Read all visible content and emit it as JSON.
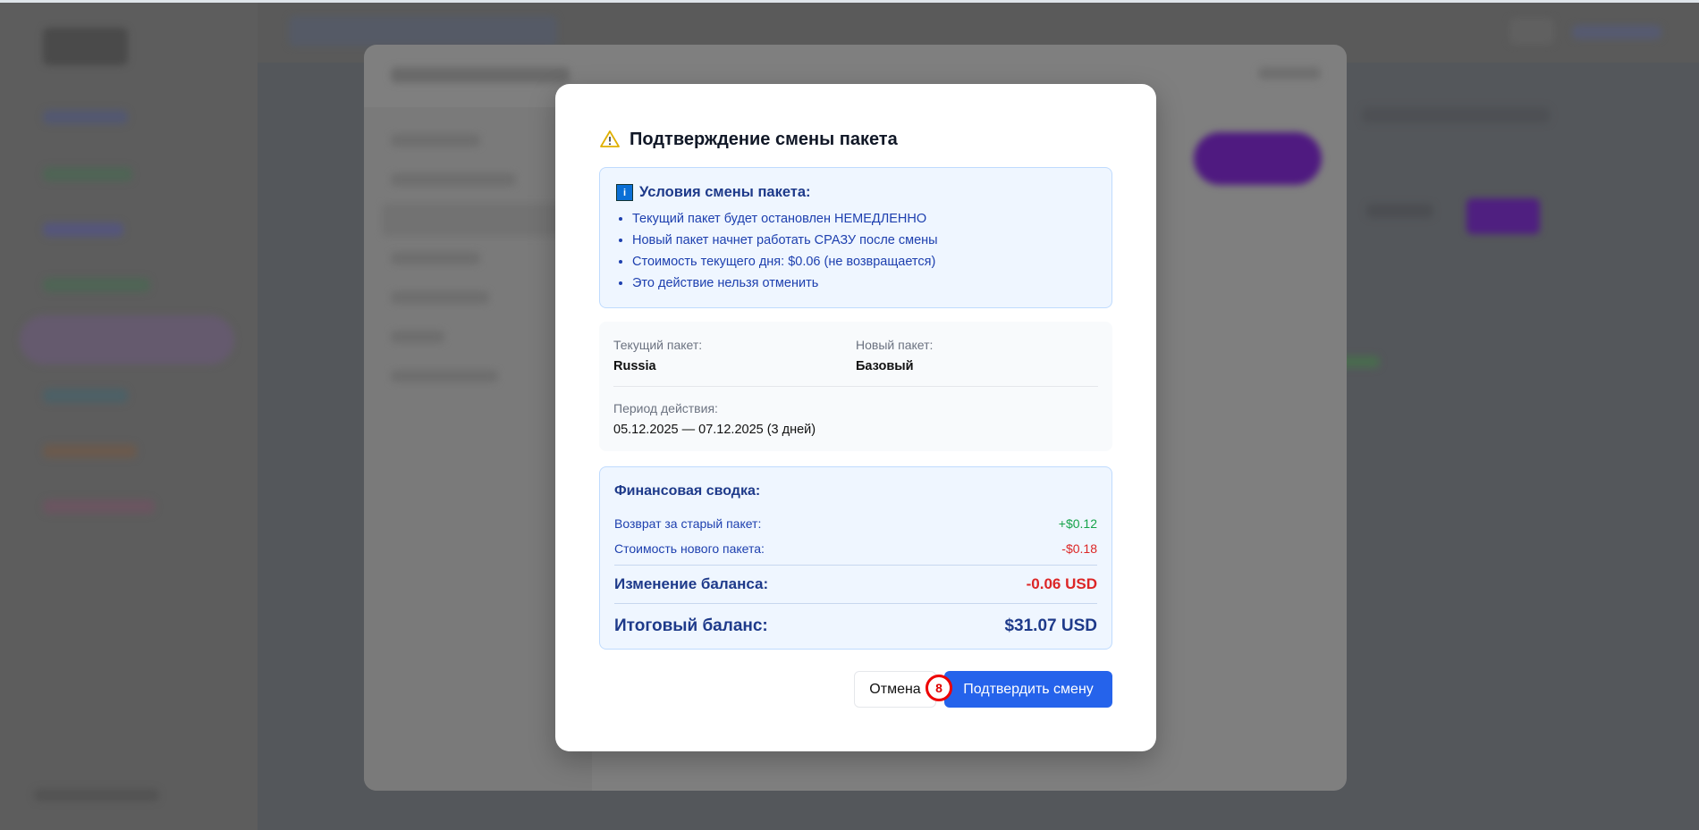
{
  "dialog": {
    "title": "Подтверждение смены пакета",
    "title_icon": "warning-triangle-icon",
    "conditions": {
      "icon": "info-icon",
      "heading": "Условия смены пакета:",
      "items": [
        "Текущий пакет будет остановлен НЕМЕДЛЕННО",
        "Новый пакет начнет работать СРАЗУ после смены",
        "Стоимость текущего дня: $0.06 (не возвращается)",
        "Это действие нельзя отменить"
      ]
    },
    "details": {
      "current_label": "Текущий пакет:",
      "current_value": "Russia",
      "new_label": "Новый пакет:",
      "new_value": "Базовый",
      "period_label": "Период действия:",
      "period_value": "05.12.2025 — 07.12.2025 (3 дней)"
    },
    "finance": {
      "heading": "Финансовая сводка:",
      "refund_label": "Возврат за старый пакет:",
      "refund_value": "+$0.12",
      "cost_label": "Стоимость нового пакета:",
      "cost_value": "-$0.18",
      "change_label": "Изменение баланса:",
      "change_value": "-0.06 USD",
      "total_label": "Итоговый баланс:",
      "total_value": "$31.07 USD"
    },
    "cancel_label": "Отмена",
    "confirm_label": "Подтвердить смену",
    "marker_badge": "8"
  },
  "colors": {
    "primary": "#2563eb",
    "positive": "#16a34a",
    "negative": "#dc2626",
    "warning": "#eab308",
    "accent_purple": "#5b1a8a"
  }
}
